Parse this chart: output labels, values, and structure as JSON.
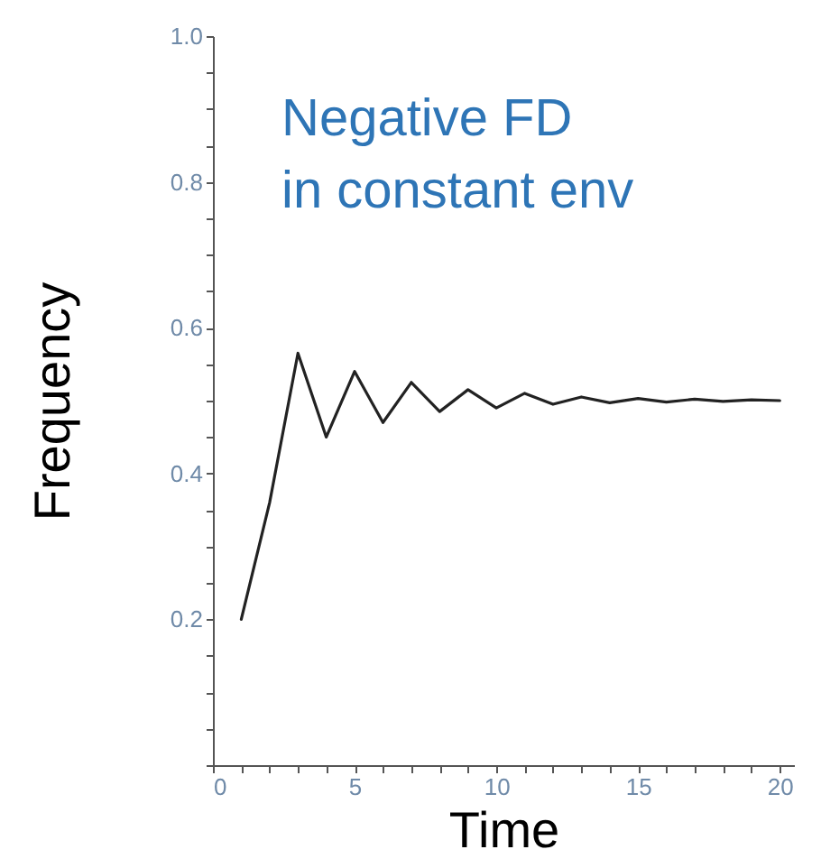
{
  "chart_data": {
    "type": "line",
    "xlabel": "Time",
    "ylabel": "Frequency",
    "annotations": [
      "Negative FD\nin constant env"
    ],
    "x": [
      1,
      2,
      3,
      4,
      5,
      6,
      7,
      8,
      9,
      10,
      11,
      12,
      13,
      14,
      15,
      16,
      17,
      18,
      19,
      20
    ],
    "series": [
      {
        "color": "#222222",
        "values": [
          0.2,
          0.36,
          0.565,
          0.45,
          0.54,
          0.47,
          0.525,
          0.485,
          0.515,
          0.49,
          0.51,
          0.495,
          0.505,
          0.497,
          0.503,
          0.498,
          0.502,
          0.499,
          0.501,
          0.5
        ]
      }
    ],
    "xlim": [
      0,
      20.5
    ],
    "xticks": [
      0,
      {
        "value": 1,
        "label": null
      },
      {
        "value": 2,
        "label": null
      },
      {
        "value": 3,
        "label": null
      },
      {
        "value": 4,
        "label": null
      },
      5,
      {
        "value": 6,
        "label": null
      },
      {
        "value": 7,
        "label": null
      },
      {
        "value": 8,
        "label": null
      },
      {
        "value": 9,
        "label": null
      },
      10,
      {
        "value": 11,
        "label": null
      },
      {
        "value": 12,
        "label": null
      },
      {
        "value": 13,
        "label": null
      },
      {
        "value": 14,
        "label": null
      },
      15,
      {
        "value": 16,
        "label": null
      },
      {
        "value": 17,
        "label": null
      },
      {
        "value": 18,
        "label": null
      },
      {
        "value": 19,
        "label": null
      },
      20
    ],
    "ylim": [
      0,
      1
    ],
    "yticks": [
      {
        "value": 0,
        "label": null
      },
      {
        "value": 0.05,
        "label": null
      },
      {
        "value": 0.1,
        "label": null
      },
      {
        "value": 0.15,
        "label": null
      },
      0.2,
      {
        "value": 0.25,
        "label": null
      },
      {
        "value": 0.3,
        "label": null
      },
      {
        "value": 0.35,
        "label": null
      },
      0.4,
      {
        "value": 0.45,
        "label": null
      },
      {
        "value": 0.5,
        "label": null
      },
      {
        "value": 0.55,
        "label": null
      },
      0.6,
      {
        "value": 0.65,
        "label": null
      },
      {
        "value": 0.7,
        "label": null
      },
      {
        "value": 0.75,
        "label": null
      },
      0.8,
      {
        "value": 0.85,
        "label": null
      },
      {
        "value": 0.9,
        "label": null
      },
      {
        "value": 0.95,
        "label": null
      },
      {
        "value": 1,
        "label": "1.0"
      }
    ],
    "grid": false,
    "marker": "none",
    "line_style": "solid"
  }
}
